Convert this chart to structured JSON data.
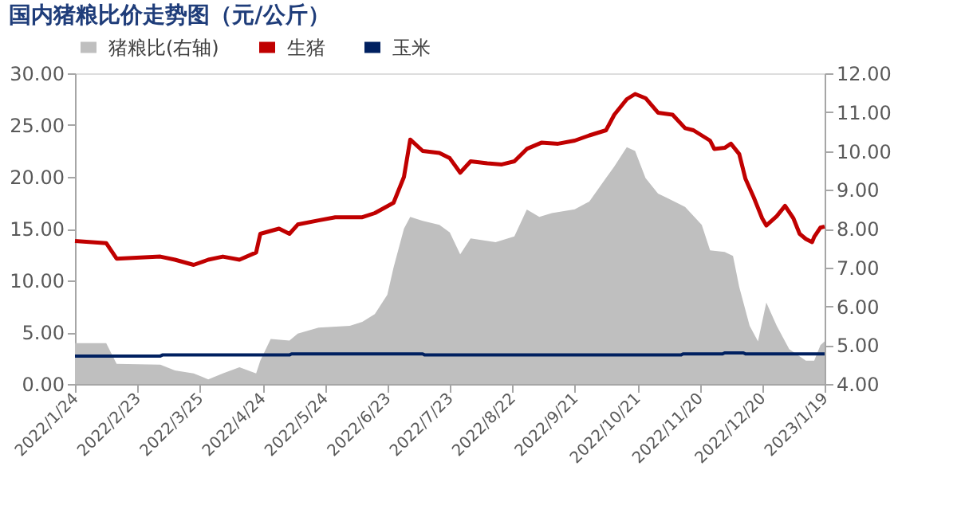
{
  "chart_data": {
    "type": "line",
    "title": "国内猪粮比价走势图（元/公斤）",
    "xlim": [
      "2022-01-24",
      "2023-01-19"
    ],
    "xticks": [
      {
        "value": "2022-01-24",
        "label": "2022/1/24"
      },
      {
        "value": "2022-02-23",
        "label": "2022/2/23"
      },
      {
        "value": "2022-03-25",
        "label": "2022/3/25"
      },
      {
        "value": "2022-04-24",
        "label": "2022/4/24"
      },
      {
        "value": "2022-05-24",
        "label": "2022/5/24"
      },
      {
        "value": "2022-06-23",
        "label": "2022/6/23"
      },
      {
        "value": "2022-07-23",
        "label": "2022/7/23"
      },
      {
        "value": "2022-08-22",
        "label": "2022/8/22"
      },
      {
        "value": "2022-09-21",
        "label": "2022/9/21"
      },
      {
        "value": "2022-10-21",
        "label": "2022/10/21"
      },
      {
        "value": "2022-11-20",
        "label": "2022/11/20"
      },
      {
        "value": "2022-12-20",
        "label": "2022/12/20"
      },
      {
        "value": "2023-01-19",
        "label": "2023/1/19"
      }
    ],
    "ylim": [
      0,
      30
    ],
    "yticks": [
      {
        "value": 0,
        "label": "0.00"
      },
      {
        "value": 5,
        "label": "5.00"
      },
      {
        "value": 10,
        "label": "10.00"
      },
      {
        "value": 15,
        "label": "15.00"
      },
      {
        "value": 20,
        "label": "20.00"
      },
      {
        "value": 25,
        "label": "25.00"
      },
      {
        "value": 30,
        "label": "30.00"
      }
    ],
    "y2lim": [
      4,
      12
    ],
    "y2ticks": [
      {
        "value": 4,
        "label": "4.00"
      },
      {
        "value": 5,
        "label": "5.00"
      },
      {
        "value": 6,
        "label": "6.00"
      },
      {
        "value": 7,
        "label": "7.00"
      },
      {
        "value": 8,
        "label": "8.00"
      },
      {
        "value": 9,
        "label": "9.00"
      },
      {
        "value": 10,
        "label": "10.00"
      },
      {
        "value": 11,
        "label": "11.00"
      },
      {
        "value": 12,
        "label": "12.00"
      }
    ],
    "grid": false,
    "legend": "top",
    "marker": "none",
    "line_style": "solid",
    "series": [
      {
        "name": "猪粮比(右轴)",
        "type": "area",
        "axis": "y2",
        "color": "#bfbfbf",
        "x": [
          "2022-01-24",
          "2022-02-08",
          "2022-02-13",
          "2022-03-06",
          "2022-03-13",
          "2022-03-22",
          "2022-03-29",
          "2022-04-05",
          "2022-04-13",
          "2022-04-21",
          "2022-04-23",
          "2022-04-28",
          "2022-05-07",
          "2022-05-11",
          "2022-05-21",
          "2022-06-05",
          "2022-06-11",
          "2022-06-17",
          "2022-06-23",
          "2022-06-26",
          "2022-07-01",
          "2022-07-04",
          "2022-07-10",
          "2022-07-18",
          "2022-07-23",
          "2022-07-28",
          "2022-08-02",
          "2022-08-14",
          "2022-08-23",
          "2022-08-29",
          "2022-09-04",
          "2022-09-10",
          "2022-09-21",
          "2022-09-28",
          "2022-10-06",
          "2022-10-10",
          "2022-10-16",
          "2022-10-20",
          "2022-10-25",
          "2022-10-31",
          "2022-11-04",
          "2022-11-13",
          "2022-11-21",
          "2022-11-25",
          "2022-12-02",
          "2022-12-06",
          "2022-12-09",
          "2022-12-14",
          "2022-12-18",
          "2022-12-22",
          "2022-12-27",
          "2023-01-02",
          "2023-01-10",
          "2023-01-14",
          "2023-01-17",
          "2023-01-19"
        ],
        "values": [
          5.05,
          5.05,
          4.52,
          4.5,
          4.35,
          4.27,
          4.12,
          4.27,
          4.43,
          4.27,
          4.6,
          5.16,
          5.12,
          5.3,
          5.45,
          5.5,
          5.6,
          5.8,
          6.3,
          7.0,
          8.0,
          8.3,
          8.2,
          8.1,
          7.9,
          7.34,
          7.75,
          7.65,
          7.8,
          8.49,
          8.3,
          8.4,
          8.5,
          8.7,
          9.3,
          9.6,
          10.1,
          10.0,
          9.3,
          8.9,
          8.8,
          8.56,
          8.1,
          7.44,
          7.4,
          7.3,
          6.5,
          5.5,
          5.1,
          6.1,
          5.5,
          4.9,
          4.6,
          4.6,
          5.0,
          5.1
        ]
      },
      {
        "name": "生猪",
        "color": "#c00000",
        "x": [
          "2022-01-24",
          "2022-02-08",
          "2022-02-13",
          "2022-03-06",
          "2022-03-13",
          "2022-03-22",
          "2022-03-29",
          "2022-04-05",
          "2022-04-13",
          "2022-04-21",
          "2022-04-23",
          "2022-05-02",
          "2022-05-07",
          "2022-05-11",
          "2022-05-21",
          "2022-05-29",
          "2022-06-11",
          "2022-06-17",
          "2022-06-26",
          "2022-07-01",
          "2022-07-04",
          "2022-07-10",
          "2022-07-18",
          "2022-07-23",
          "2022-07-28",
          "2022-08-02",
          "2022-08-10",
          "2022-08-17",
          "2022-08-23",
          "2022-08-29",
          "2022-09-05",
          "2022-09-13",
          "2022-09-21",
          "2022-09-28",
          "2022-10-06",
          "2022-10-10",
          "2022-10-16",
          "2022-10-20",
          "2022-10-25",
          "2022-10-31",
          "2022-11-07",
          "2022-11-13",
          "2022-11-17",
          "2022-11-25",
          "2022-11-27",
          "2022-12-02",
          "2022-12-05",
          "2022-12-09",
          "2022-12-12",
          "2022-12-16",
          "2022-12-20",
          "2022-12-22",
          "2022-12-27",
          "2022-12-31",
          "2023-01-04",
          "2023-01-07",
          "2023-01-10",
          "2023-01-13",
          "2023-01-14",
          "2023-01-17",
          "2023-01-19"
        ],
        "values": [
          13.8,
          13.6,
          12.1,
          12.3,
          12.0,
          11.5,
          12.0,
          12.3,
          12.0,
          12.7,
          14.5,
          15.0,
          14.5,
          15.4,
          15.8,
          16.1,
          16.1,
          16.5,
          17.5,
          20.0,
          23.6,
          22.5,
          22.3,
          21.8,
          20.4,
          21.5,
          21.3,
          21.2,
          21.5,
          22.7,
          23.3,
          23.2,
          23.5,
          24.0,
          24.5,
          26.0,
          27.5,
          28.0,
          27.6,
          26.2,
          26.0,
          24.7,
          24.5,
          23.5,
          22.7,
          22.8,
          23.2,
          22.2,
          19.8,
          18.0,
          16.0,
          15.3,
          16.2,
          17.2,
          16.0,
          14.5,
          14.0,
          13.7,
          14.2,
          15.1,
          15.2
        ]
      },
      {
        "name": "玉米",
        "color": "#002060",
        "x": [
          "2022-01-24",
          "2022-03-06",
          "2022-03-07",
          "2022-05-07",
          "2022-05-08",
          "2022-07-10",
          "2022-07-11",
          "2022-11-11",
          "2022-11-12",
          "2022-12-01",
          "2022-12-02",
          "2022-12-11",
          "2022-12-12",
          "2023-01-19"
        ],
        "values": [
          2.7,
          2.7,
          2.8,
          2.8,
          2.9,
          2.9,
          2.8,
          2.8,
          2.9,
          2.9,
          3.0,
          3.0,
          2.9,
          2.9
        ]
      }
    ]
  }
}
